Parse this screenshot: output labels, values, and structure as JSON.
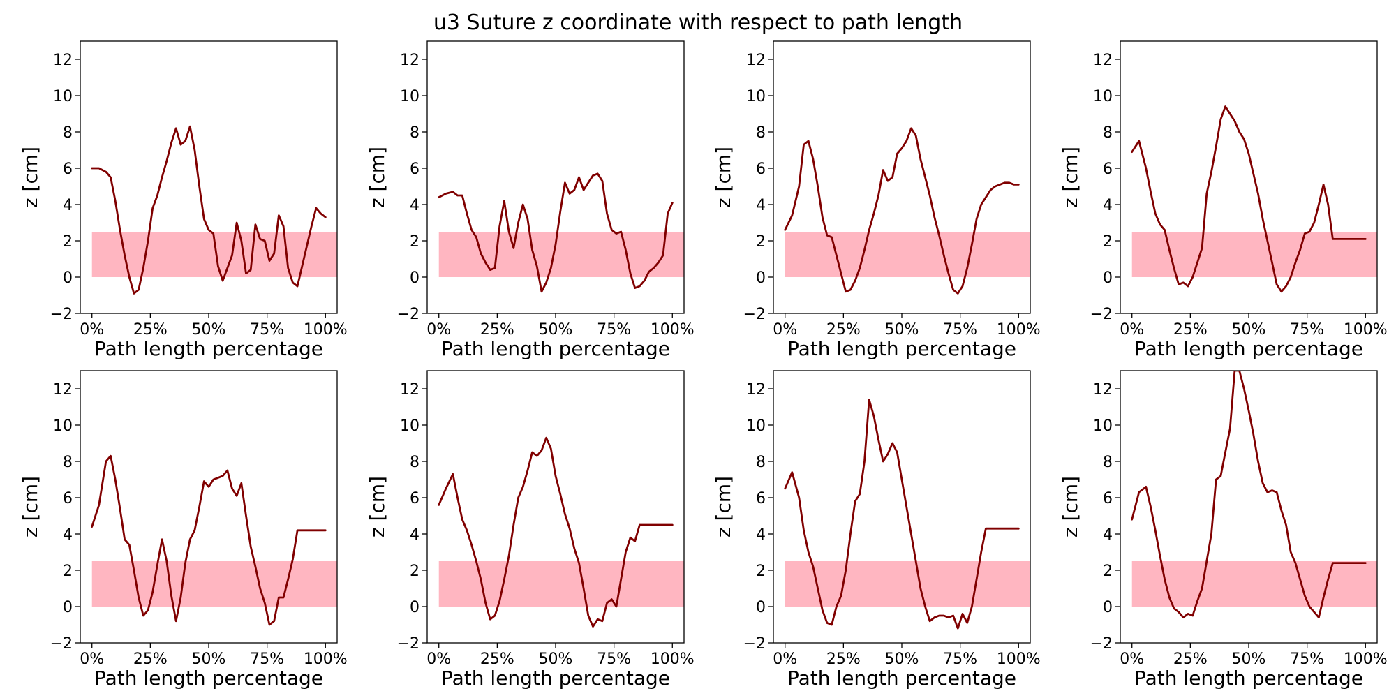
{
  "figure": {
    "title": "u3 Suture z coordinate with respect to path length"
  },
  "colors": {
    "line": "#800000",
    "band": "#ffb6c1",
    "background": "#ffffff"
  },
  "chart_data": [
    {
      "type": "line",
      "xlabel": "Path length percentage",
      "ylabel": "z [cm]",
      "xlim": [
        -5,
        105
      ],
      "ylim": [
        -2,
        13
      ],
      "xticks": [
        "0%",
        "25%",
        "50%",
        "75%",
        "100%"
      ],
      "yticks": [
        "−2",
        "0",
        "2",
        "4",
        "6",
        "8",
        "10",
        "12"
      ],
      "band": {
        "x": [
          0,
          105
        ],
        "y": [
          0,
          2.5
        ]
      },
      "x": [
        0,
        3,
        6,
        8,
        10,
        12,
        14,
        16,
        18,
        20,
        22,
        24,
        26,
        28,
        30,
        32,
        34,
        36,
        38,
        40,
        42,
        44,
        46,
        48,
        50,
        52,
        54,
        56,
        58,
        60,
        62,
        64,
        66,
        68,
        70,
        72,
        74,
        76,
        78,
        80,
        82,
        84,
        86,
        88,
        90,
        92,
        94,
        96,
        98,
        100
      ],
      "y": [
        6.0,
        6.0,
        5.8,
        5.5,
        4.2,
        2.6,
        1.2,
        0.0,
        -0.9,
        -0.7,
        0.5,
        2.0,
        3.8,
        4.5,
        5.5,
        6.4,
        7.4,
        8.2,
        7.3,
        7.5,
        8.3,
        7.0,
        5.0,
        3.2,
        2.6,
        2.4,
        0.6,
        -0.2,
        0.5,
        1.2,
        3.0,
        2.0,
        0.2,
        0.4,
        2.9,
        2.1,
        2.0,
        0.9,
        1.3,
        3.4,
        2.8,
        0.5,
        -0.3,
        -0.5,
        0.6,
        1.7,
        2.8,
        3.8,
        3.5,
        3.3
      ]
    },
    {
      "type": "line",
      "xlabel": "Path length percentage",
      "ylabel": "z [cm]",
      "xlim": [
        -5,
        105
      ],
      "ylim": [
        -2,
        13
      ],
      "xticks": [
        "0%",
        "25%",
        "50%",
        "75%",
        "100%"
      ],
      "yticks": [
        "−2",
        "0",
        "2",
        "4",
        "6",
        "8",
        "10",
        "12"
      ],
      "band": {
        "x": [
          0,
          105
        ],
        "y": [
          0,
          2.5
        ]
      },
      "x": [
        0,
        3,
        6,
        8,
        10,
        12,
        14,
        16,
        18,
        20,
        22,
        24,
        26,
        28,
        30,
        32,
        34,
        36,
        38,
        40,
        42,
        44,
        46,
        48,
        50,
        52,
        54,
        56,
        58,
        60,
        62,
        64,
        66,
        68,
        70,
        72,
        74,
        76,
        78,
        80,
        82,
        84,
        86,
        88,
        90,
        92,
        94,
        96,
        98,
        100
      ],
      "y": [
        4.4,
        4.6,
        4.7,
        4.5,
        4.5,
        3.5,
        2.6,
        2.2,
        1.3,
        0.8,
        0.4,
        0.5,
        2.8,
        4.2,
        2.5,
        1.6,
        3.0,
        4.0,
        3.2,
        1.5,
        0.6,
        -0.8,
        -0.3,
        0.5,
        1.8,
        3.6,
        5.2,
        4.6,
        4.8,
        5.5,
        4.8,
        5.2,
        5.6,
        5.7,
        5.3,
        3.5,
        2.6,
        2.4,
        2.5,
        1.5,
        0.2,
        -0.6,
        -0.5,
        -0.2,
        0.3,
        0.5,
        0.8,
        1.2,
        3.5,
        4.1
      ]
    },
    {
      "type": "line",
      "xlabel": "Path length percentage",
      "ylabel": "z [cm]",
      "xlim": [
        -5,
        105
      ],
      "ylim": [
        -2,
        13
      ],
      "xticks": [
        "0%",
        "25%",
        "50%",
        "75%",
        "100%"
      ],
      "yticks": [
        "−2",
        "0",
        "2",
        "4",
        "6",
        "8",
        "10",
        "12"
      ],
      "band": {
        "x": [
          0,
          105
        ],
        "y": [
          0,
          2.5
        ]
      },
      "x": [
        0,
        3,
        6,
        8,
        10,
        12,
        14,
        16,
        18,
        20,
        22,
        24,
        26,
        28,
        30,
        32,
        34,
        36,
        38,
        40,
        42,
        44,
        46,
        48,
        50,
        52,
        54,
        56,
        58,
        60,
        62,
        64,
        66,
        68,
        70,
        72,
        74,
        76,
        78,
        80,
        82,
        84,
        86,
        88,
        90,
        92,
        94,
        96,
        98,
        100
      ],
      "y": [
        2.6,
        3.4,
        5.0,
        7.3,
        7.5,
        6.5,
        5.0,
        3.3,
        2.3,
        2.2,
        1.2,
        0.2,
        -0.8,
        -0.7,
        -0.2,
        0.5,
        1.5,
        2.6,
        3.5,
        4.5,
        5.9,
        5.3,
        5.5,
        6.8,
        7.1,
        7.5,
        8.2,
        7.8,
        6.5,
        5.5,
        4.5,
        3.3,
        2.3,
        1.2,
        0.2,
        -0.7,
        -0.9,
        -0.5,
        0.5,
        1.8,
        3.2,
        4.0,
        4.4,
        4.8,
        5.0,
        5.1,
        5.2,
        5.2,
        5.1,
        5.1
      ]
    },
    {
      "type": "line",
      "xlabel": "Path length percentage",
      "ylabel": "z [cm]",
      "xlim": [
        -5,
        105
      ],
      "ylim": [
        -2,
        13
      ],
      "xticks": [
        "0%",
        "25%",
        "50%",
        "75%",
        "100%"
      ],
      "yticks": [
        "−2",
        "0",
        "2",
        "4",
        "6",
        "8",
        "10",
        "12"
      ],
      "band": {
        "x": [
          0,
          105
        ],
        "y": [
          0,
          2.5
        ]
      },
      "x": [
        0,
        3,
        6,
        8,
        10,
        12,
        14,
        16,
        18,
        20,
        22,
        24,
        26,
        28,
        30,
        32,
        34,
        36,
        38,
        40,
        42,
        44,
        46,
        48,
        50,
        52,
        54,
        56,
        58,
        60,
        62,
        64,
        66,
        68,
        70,
        72,
        74,
        76,
        78,
        80,
        82,
        84,
        86,
        88,
        90,
        92,
        94,
        96,
        98,
        100
      ],
      "y": [
        6.9,
        7.5,
        6.0,
        4.7,
        3.5,
        2.9,
        2.6,
        1.5,
        0.5,
        -0.4,
        -0.3,
        -0.5,
        0.0,
        0.8,
        1.6,
        4.6,
        5.8,
        7.2,
        8.7,
        9.4,
        9.0,
        8.6,
        8.0,
        7.6,
        6.8,
        5.7,
        4.6,
        3.2,
        2.0,
        0.8,
        -0.4,
        -0.8,
        -0.5,
        0.0,
        0.8,
        1.5,
        2.4,
        2.5,
        3.0,
        4.0,
        5.1,
        4.0,
        2.1,
        2.1,
        2.1,
        2.1,
        2.1,
        2.1,
        2.1,
        2.1
      ]
    },
    {
      "type": "line",
      "xlabel": "Path length percentage",
      "ylabel": "z [cm]",
      "xlim": [
        -5,
        105
      ],
      "ylim": [
        -2,
        13
      ],
      "xticks": [
        "0%",
        "25%",
        "50%",
        "75%",
        "100%"
      ],
      "yticks": [
        "−2",
        "0",
        "2",
        "4",
        "6",
        "8",
        "10",
        "12"
      ],
      "band": {
        "x": [
          0,
          105
        ],
        "y": [
          0,
          2.5
        ]
      },
      "x": [
        0,
        3,
        6,
        8,
        10,
        12,
        14,
        16,
        18,
        20,
        22,
        24,
        26,
        28,
        30,
        32,
        34,
        36,
        38,
        40,
        42,
        44,
        46,
        48,
        50,
        52,
        54,
        56,
        58,
        60,
        62,
        64,
        66,
        68,
        70,
        72,
        74,
        76,
        78,
        80,
        82,
        84,
        86,
        88,
        90,
        92,
        94,
        96,
        98,
        100
      ],
      "y": [
        4.4,
        5.6,
        8.0,
        8.3,
        7.0,
        5.4,
        3.7,
        3.4,
        2.0,
        0.5,
        -0.5,
        -0.2,
        0.8,
        2.3,
        3.7,
        2.5,
        0.6,
        -0.8,
        0.5,
        2.4,
        3.7,
        4.2,
        5.5,
        6.9,
        6.6,
        7.0,
        7.1,
        7.2,
        7.5,
        6.5,
        6.1,
        6.8,
        5.0,
        3.3,
        2.2,
        1.0,
        0.2,
        -1.0,
        -0.8,
        0.5,
        0.5,
        1.5,
        2.6,
        4.2,
        4.2,
        4.2,
        4.2,
        4.2,
        4.2,
        4.2
      ]
    },
    {
      "type": "line",
      "xlabel": "Path length percentage",
      "ylabel": "z [cm]",
      "xlim": [
        -5,
        105
      ],
      "ylim": [
        -2,
        13
      ],
      "xticks": [
        "0%",
        "25%",
        "50%",
        "75%",
        "100%"
      ],
      "yticks": [
        "−2",
        "0",
        "2",
        "4",
        "6",
        "8",
        "10",
        "12"
      ],
      "band": {
        "x": [
          0,
          105
        ],
        "y": [
          0,
          2.5
        ]
      },
      "x": [
        0,
        3,
        6,
        8,
        10,
        12,
        14,
        16,
        18,
        20,
        22,
        24,
        26,
        28,
        30,
        32,
        34,
        36,
        38,
        40,
        42,
        44,
        46,
        48,
        50,
        52,
        54,
        56,
        58,
        60,
        62,
        64,
        66,
        68,
        70,
        72,
        74,
        76,
        78,
        80,
        82,
        84,
        86,
        88,
        90,
        92,
        94,
        96,
        98,
        100
      ],
      "y": [
        5.6,
        6.5,
        7.3,
        6.0,
        4.8,
        4.2,
        3.4,
        2.5,
        1.5,
        0.2,
        -0.7,
        -0.5,
        0.3,
        1.5,
        2.8,
        4.5,
        6.0,
        6.6,
        7.5,
        8.5,
        8.3,
        8.6,
        9.3,
        8.7,
        7.2,
        6.2,
        5.1,
        4.3,
        3.2,
        2.4,
        1.0,
        -0.5,
        -1.1,
        -0.7,
        -0.8,
        0.2,
        0.4,
        0.0,
        1.5,
        3.0,
        3.8,
        3.6,
        4.5,
        4.5,
        4.5,
        4.5,
        4.5,
        4.5,
        4.5,
        4.5
      ]
    },
    {
      "type": "line",
      "xlabel": "Path length percentage",
      "ylabel": "z [cm]",
      "xlim": [
        -5,
        105
      ],
      "ylim": [
        -2,
        13
      ],
      "xticks": [
        "0%",
        "25%",
        "50%",
        "75%",
        "100%"
      ],
      "yticks": [
        "−2",
        "0",
        "2",
        "4",
        "6",
        "8",
        "10",
        "12"
      ],
      "band": {
        "x": [
          0,
          105
        ],
        "y": [
          0,
          2.5
        ]
      },
      "x": [
        0,
        3,
        6,
        8,
        10,
        12,
        14,
        16,
        18,
        20,
        22,
        24,
        26,
        28,
        30,
        32,
        34,
        36,
        38,
        40,
        42,
        44,
        46,
        48,
        50,
        52,
        54,
        56,
        58,
        60,
        62,
        64,
        66,
        68,
        70,
        72,
        74,
        76,
        78,
        80,
        82,
        84,
        86,
        88,
        90,
        92,
        94,
        96,
        98,
        100
      ],
      "y": [
        6.5,
        7.4,
        6.0,
        4.2,
        3.0,
        2.2,
        1.0,
        -0.2,
        -0.9,
        -1.0,
        0.0,
        0.6,
        2.0,
        4.0,
        5.8,
        6.2,
        8.0,
        11.4,
        10.5,
        9.2,
        8.0,
        8.4,
        9.0,
        8.5,
        7.0,
        5.5,
        4.0,
        2.5,
        1.0,
        0.0,
        -0.8,
        -0.6,
        -0.5,
        -0.5,
        -0.6,
        -0.5,
        -1.2,
        -0.4,
        -0.9,
        0.0,
        1.5,
        3.0,
        4.3,
        4.3,
        4.3,
        4.3,
        4.3,
        4.3,
        4.3,
        4.3
      ]
    },
    {
      "type": "line",
      "xlabel": "Path length percentage",
      "ylabel": "z [cm]",
      "xlim": [
        -5,
        105
      ],
      "ylim": [
        -2,
        13
      ],
      "xticks": [
        "0%",
        "25%",
        "50%",
        "75%",
        "100%"
      ],
      "yticks": [
        "−2",
        "0",
        "2",
        "4",
        "6",
        "8",
        "10",
        "12"
      ],
      "band": {
        "x": [
          0,
          105
        ],
        "y": [
          0,
          2.5
        ]
      },
      "x": [
        0,
        3,
        6,
        8,
        10,
        12,
        14,
        16,
        18,
        20,
        22,
        24,
        26,
        28,
        30,
        32,
        34,
        36,
        38,
        40,
        42,
        44,
        46,
        48,
        50,
        52,
        54,
        56,
        58,
        60,
        62,
        64,
        66,
        68,
        70,
        72,
        74,
        76,
        78,
        80,
        82,
        84,
        86,
        88,
        90,
        92,
        94,
        96,
        98,
        100
      ],
      "y": [
        4.8,
        6.3,
        6.6,
        5.5,
        4.2,
        2.8,
        1.5,
        0.5,
        -0.1,
        -0.3,
        -0.6,
        -0.4,
        -0.5,
        0.3,
        1.0,
        2.5,
        4.0,
        7.0,
        7.2,
        8.5,
        9.8,
        13.0,
        13.0,
        12.0,
        10.8,
        9.5,
        8.0,
        6.8,
        6.3,
        6.4,
        6.3,
        5.3,
        4.5,
        3.0,
        2.4,
        1.5,
        0.6,
        0.0,
        -0.3,
        -0.6,
        0.5,
        1.5,
        2.4,
        2.4,
        2.4,
        2.4,
        2.4,
        2.4,
        2.4,
        2.4
      ]
    }
  ]
}
